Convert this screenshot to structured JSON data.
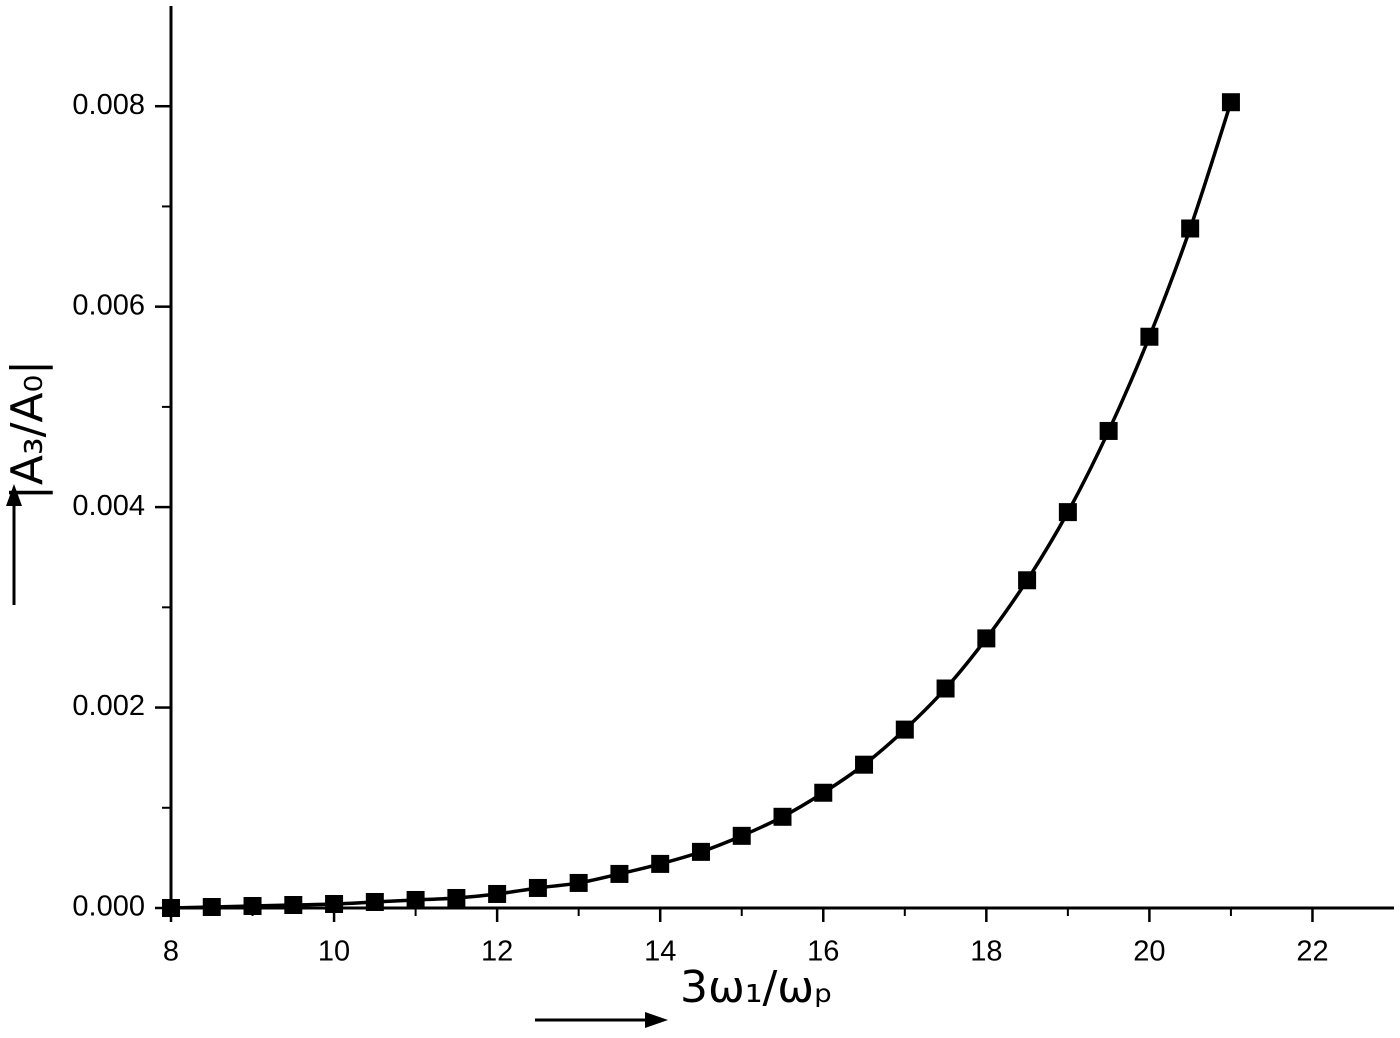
{
  "chart_data": {
    "type": "line",
    "xlabel": "3ω₁/ωₚ",
    "ylabel": "|A₃/A₀|",
    "x": [
      8,
      8.5,
      9,
      9.5,
      10,
      10.5,
      11,
      11.5,
      12,
      12.5,
      13,
      13.5,
      14,
      14.5,
      15,
      15.5,
      16,
      16.5,
      17,
      17.5,
      18,
      18.5,
      19,
      19.5,
      20,
      20.5,
      21
    ],
    "values": [
      0.0,
      1e-05,
      2e-05,
      3e-05,
      4e-05,
      6e-05,
      8e-05,
      0.0001,
      0.00014,
      0.0002,
      0.00025,
      0.00034,
      0.00044,
      0.00056,
      0.00072,
      0.00091,
      0.00115,
      0.00143,
      0.00178,
      0.00219,
      0.00269,
      0.00327,
      0.00395,
      0.00476,
      0.0057,
      0.00678,
      0.00804
    ],
    "color": "#000000",
    "marker": "square",
    "xlim": [
      8,
      23
    ],
    "xticks": [
      8,
      10,
      12,
      14,
      16,
      18,
      20,
      22
    ],
    "ylim": [
      0,
      0.009
    ],
    "yticks": [
      {
        "value": 0,
        "label": "0.000"
      },
      {
        "value": 0.002,
        "label": "0.002"
      },
      {
        "value": 0.004,
        "label": "0.004"
      },
      {
        "value": 0.006,
        "label": "0.006"
      },
      {
        "value": 0.008,
        "label": "0.008"
      }
    ]
  }
}
